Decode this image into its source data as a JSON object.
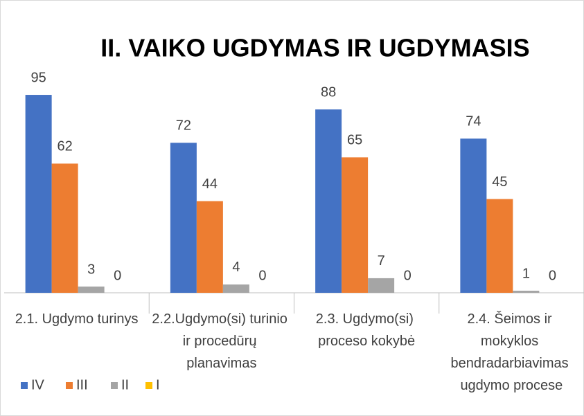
{
  "chart_data": {
    "type": "bar",
    "title": "II. VAIKO UGDYMAS IR UGDYMASIS",
    "categories": [
      "2.1. Ugdymo turinys",
      "2.2.Ugdymo(si) turinio ir procedūrų planavimas",
      "2.3. Ugdymo(si) proceso kokybė",
      "2.4. Šeimos ir mokyklos bendradarbiavimas ugdymo procese"
    ],
    "series": [
      {
        "name": "IV",
        "color": "#4472c4",
        "values": [
          95,
          72,
          88,
          74
        ]
      },
      {
        "name": "III",
        "color": "#ed7d31",
        "values": [
          62,
          44,
          65,
          45
        ]
      },
      {
        "name": "II",
        "color": "#a5a5a5",
        "values": [
          3,
          4,
          7,
          1
        ]
      },
      {
        "name": "I",
        "color": "#ffc000",
        "values": [
          0,
          0,
          0,
          0
        ]
      }
    ],
    "ylim": [
      0,
      100
    ],
    "legend": "bottom-left"
  }
}
